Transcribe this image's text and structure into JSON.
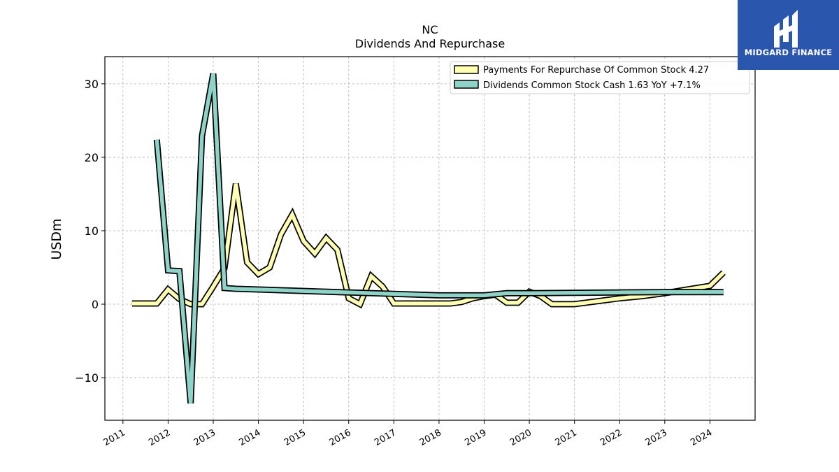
{
  "brand": {
    "name": "MIDGARD FINANCE",
    "color": "#2a57ad"
  },
  "chart_data": {
    "type": "line",
    "title": "NC",
    "subtitle": "Dividends And Repurchase",
    "ylabel": "USDm",
    "xlabel": "",
    "ylim": [
      -15.8,
      33.7
    ],
    "xlim": [
      2010.6,
      2025.0
    ],
    "yticks": [
      -10,
      0,
      10,
      20,
      30
    ],
    "ytick_labels": [
      "−10",
      "0",
      "10",
      "20",
      "30"
    ],
    "xticks": [
      2011,
      2012,
      2013,
      2014,
      2015,
      2016,
      2017,
      2018,
      2019,
      2020,
      2021,
      2022,
      2023,
      2024
    ],
    "xtick_labels": [
      "2011",
      "2012",
      "2013",
      "2014",
      "2015",
      "2016",
      "2017",
      "2018",
      "2019",
      "2020",
      "2021",
      "2022",
      "2023",
      "2024"
    ],
    "grid": true,
    "legend_position": "top-right",
    "series": [
      {
        "name": "Payments For Repurchase Of Common Stock",
        "legend_label": "Payments For Repurchase Of Common Stock  4.27",
        "color": "#ffffb3",
        "x": [
          2011.2,
          2011.75,
          2012.0,
          2012.25,
          2012.5,
          2012.75,
          2013.0,
          2013.25,
          2013.5,
          2013.75,
          2014.0,
          2014.25,
          2014.5,
          2014.75,
          2015.0,
          2015.25,
          2015.5,
          2015.75,
          2016.0,
          2016.25,
          2016.5,
          2016.75,
          2017.0,
          2017.25,
          2017.5,
          2017.75,
          2018.0,
          2018.25,
          2018.5,
          2018.75,
          2019.0,
          2019.25,
          2019.5,
          2019.75,
          2020.0,
          2020.25,
          2020.5,
          2020.75,
          2021.0,
          2021.5,
          2022.0,
          2022.5,
          2023.0,
          2023.5,
          2024.0,
          2024.3
        ],
        "values": [
          0.1,
          0.1,
          2.0,
          0.7,
          0.0,
          0.0,
          2.4,
          4.9,
          16.4,
          5.7,
          4.1,
          5.0,
          9.5,
          12.2,
          8.6,
          6.9,
          9.0,
          7.4,
          0.8,
          0.0,
          3.8,
          2.4,
          0.1,
          0.1,
          0.1,
          0.1,
          0.1,
          0.1,
          0.3,
          0.8,
          1.1,
          1.3,
          0.2,
          0.2,
          1.7,
          1.1,
          0.0,
          0.0,
          0.0,
          0.4,
          0.8,
          1.1,
          1.5,
          2.0,
          2.5,
          4.3
        ]
      },
      {
        "name": "Dividends Common Stock Cash",
        "legend_label": "Dividends Common Stock Cash  1.63 YoY +7.1%",
        "color": "#8dd3c7",
        "x": [
          2011.75,
          2012.0,
          2012.25,
          2012.5,
          2012.75,
          2013.0,
          2013.25,
          2013.5,
          2014.0,
          2015.0,
          2016.0,
          2017.0,
          2018.0,
          2019.0,
          2019.5,
          2020.0,
          2021.0,
          2022.0,
          2023.0,
          2024.0,
          2024.3
        ],
        "values": [
          22.4,
          4.6,
          4.5,
          -13.5,
          22.9,
          31.4,
          2.2,
          2.1,
          2.0,
          1.8,
          1.6,
          1.4,
          1.2,
          1.2,
          1.5,
          1.5,
          1.55,
          1.6,
          1.65,
          1.65,
          1.65
        ]
      }
    ]
  }
}
